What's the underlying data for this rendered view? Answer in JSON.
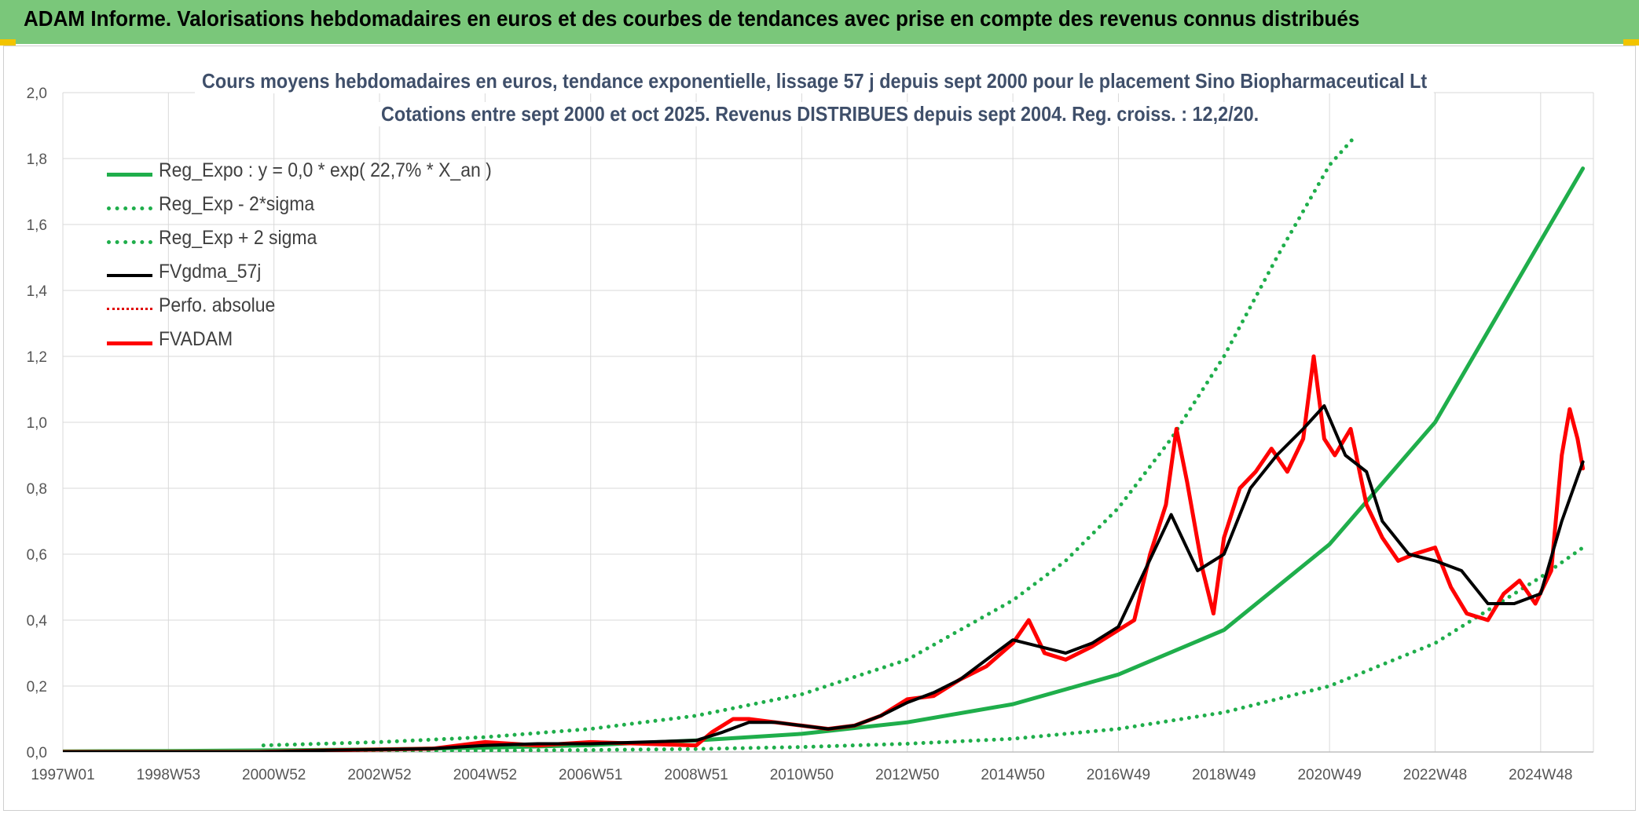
{
  "header": {
    "title": "ADAM Informe. Valorisations hebdomadaires en euros et des courbes de tendances avec prise en compte des revenus connus distribués"
  },
  "chart_data": {
    "type": "line",
    "title": "Cours moyens hebdomadaires en euros, tendance exponentielle, lissage 57 j depuis sept 2000 pour le placement Sino Biopharmaceutical Lt",
    "subtitle": "Cotations entre sept 2000 et oct 2025. Revenus DISTRIBUES depuis sept 2004. Reg. croiss. : 12,2/20.",
    "xlabel": "",
    "ylabel": "",
    "ylim": [
      0,
      2.0
    ],
    "xlim": [
      1997.0,
      2026.0
    ],
    "yticks": [
      "0,0",
      "0,2",
      "0,4",
      "0,6",
      "0,8",
      "1,0",
      "1,2",
      "1,4",
      "1,6",
      "1,8",
      "2,0"
    ],
    "xticks": [
      {
        "label": "1997W01",
        "year": 1997.0
      },
      {
        "label": "1998W53",
        "year": 1999.0
      },
      {
        "label": "2000W52",
        "year": 2001.0
      },
      {
        "label": "2002W52",
        "year": 2003.0
      },
      {
        "label": "2004W52",
        "year": 2005.0
      },
      {
        "label": "2006W51",
        "year": 2007.0
      },
      {
        "label": "2008W51",
        "year": 2009.0
      },
      {
        "label": "2010W50",
        "year": 2011.0
      },
      {
        "label": "2012W50",
        "year": 2013.0
      },
      {
        "label": "2014W50",
        "year": 2015.0
      },
      {
        "label": "2016W49",
        "year": 2017.0
      },
      {
        "label": "2018W49",
        "year": 2019.0
      },
      {
        "label": "2020W49",
        "year": 2021.0
      },
      {
        "label": "2022W48",
        "year": 2023.0
      },
      {
        "label": "2024W48",
        "year": 2025.0
      }
    ],
    "grid": true,
    "legend_position": "top-left",
    "series": [
      {
        "name": "Reg_Expo : y = 0,0 * exp( 22,7% *  X_an )",
        "style": "solid",
        "color": "#1fae4b",
        "width": 5,
        "x": [
          1997.0,
          1999.0,
          2001.0,
          2003.0,
          2005.0,
          2007.0,
          2009.0,
          2011.0,
          2013.0,
          2015.0,
          2017.0,
          2019.0,
          2021.0,
          2023.0,
          2025.0,
          2025.8
        ],
        "y": [
          0.002,
          0.003,
          0.005,
          0.008,
          0.013,
          0.021,
          0.035,
          0.055,
          0.09,
          0.145,
          0.235,
          0.37,
          0.63,
          1.0,
          1.55,
          1.77
        ]
      },
      {
        "name": "Reg_Exp - 2*sigma",
        "style": "dotted",
        "color": "#1fae4b",
        "width": 5,
        "x": [
          2000.8,
          2003.0,
          2005.0,
          2007.0,
          2009.0,
          2011.0,
          2013.0,
          2015.0,
          2017.0,
          2019.0,
          2021.0,
          2023.0,
          2025.0,
          2025.8
        ],
        "y": [
          0.0,
          0.002,
          0.004,
          0.006,
          0.009,
          0.015,
          0.025,
          0.04,
          0.07,
          0.12,
          0.2,
          0.33,
          0.53,
          0.62
        ]
      },
      {
        "name": "Reg_Exp + 2 sigma",
        "style": "dotted",
        "color": "#1fae4b",
        "width": 5,
        "x": [
          2000.8,
          2003.0,
          2005.0,
          2007.0,
          2009.0,
          2011.0,
          2013.0,
          2015.0,
          2016.0,
          2017.0,
          2018.0,
          2019.0,
          2020.0,
          2021.0,
          2021.5
        ],
        "y": [
          0.02,
          0.03,
          0.045,
          0.07,
          0.11,
          0.175,
          0.28,
          0.46,
          0.58,
          0.74,
          0.95,
          1.2,
          1.5,
          1.78,
          1.87
        ]
      },
      {
        "name": "FVgdma_57j",
        "style": "solid",
        "color": "#000000",
        "width": 4,
        "x": [
          1997.0,
          2000.7,
          2002.0,
          2004.0,
          2005.0,
          2006.0,
          2007.0,
          2008.0,
          2009.0,
          2009.5,
          2010.0,
          2010.5,
          2011.0,
          2011.5,
          2012.0,
          2012.5,
          2013.0,
          2013.5,
          2014.0,
          2014.5,
          2015.0,
          2015.5,
          2016.0,
          2016.5,
          2017.0,
          2017.5,
          2018.0,
          2018.5,
          2019.0,
          2019.5,
          2020.0,
          2020.5,
          2020.9,
          2021.3,
          2021.7,
          2022.0,
          2022.5,
          2023.0,
          2023.5,
          2024.0,
          2024.5,
          2025.0,
          2025.4,
          2025.8
        ],
        "y": [
          0.0,
          0.0,
          0.005,
          0.01,
          0.02,
          0.025,
          0.025,
          0.03,
          0.035,
          0.06,
          0.09,
          0.09,
          0.08,
          0.07,
          0.08,
          0.11,
          0.15,
          0.18,
          0.22,
          0.28,
          0.34,
          0.32,
          0.3,
          0.33,
          0.38,
          0.55,
          0.72,
          0.55,
          0.6,
          0.8,
          0.9,
          0.98,
          1.05,
          0.9,
          0.85,
          0.7,
          0.6,
          0.58,
          0.55,
          0.45,
          0.45,
          0.48,
          0.7,
          0.88
        ]
      },
      {
        "name": "Perfo. absolue",
        "style": "dotted",
        "color": "#e00000",
        "width": 3,
        "x": [],
        "y": []
      },
      {
        "name": "FVADAM",
        "style": "solid",
        "color": "#ff0000",
        "width": 5,
        "x": [
          1997.0,
          2000.7,
          2002.0,
          2004.0,
          2005.0,
          2006.0,
          2007.0,
          2008.0,
          2009.0,
          2009.3,
          2009.7,
          2010.0,
          2010.5,
          2011.0,
          2011.5,
          2012.0,
          2012.5,
          2013.0,
          2013.5,
          2014.0,
          2014.5,
          2015.0,
          2015.3,
          2015.6,
          2016.0,
          2016.5,
          2017.0,
          2017.3,
          2017.6,
          2017.9,
          2018.1,
          2018.3,
          2018.6,
          2018.8,
          2019.0,
          2019.3,
          2019.6,
          2019.9,
          2020.2,
          2020.5,
          2020.7,
          2020.9,
          2021.1,
          2021.4,
          2021.7,
          2022.0,
          2022.3,
          2022.6,
          2023.0,
          2023.3,
          2023.6,
          2024.0,
          2024.3,
          2024.6,
          2024.9,
          2025.2,
          2025.4,
          2025.55,
          2025.7,
          2025.8
        ],
        "y": [
          0.0,
          0.0,
          0.005,
          0.01,
          0.03,
          0.02,
          0.03,
          0.025,
          0.02,
          0.06,
          0.1,
          0.1,
          0.09,
          0.08,
          0.07,
          0.08,
          0.11,
          0.16,
          0.17,
          0.22,
          0.26,
          0.33,
          0.4,
          0.3,
          0.28,
          0.32,
          0.37,
          0.4,
          0.6,
          0.75,
          0.98,
          0.82,
          0.55,
          0.42,
          0.65,
          0.8,
          0.85,
          0.92,
          0.85,
          0.95,
          1.2,
          0.95,
          0.9,
          0.98,
          0.75,
          0.65,
          0.58,
          0.6,
          0.62,
          0.5,
          0.42,
          0.4,
          0.48,
          0.52,
          0.45,
          0.55,
          0.9,
          1.04,
          0.95,
          0.86
        ]
      }
    ]
  }
}
